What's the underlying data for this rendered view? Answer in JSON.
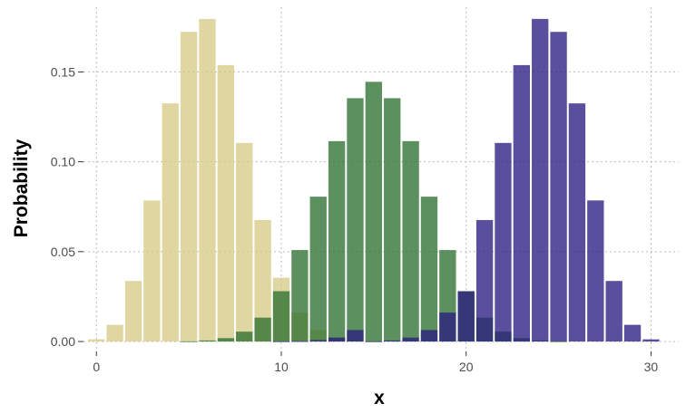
{
  "chart_data": {
    "type": "bar",
    "title": "",
    "xlabel": "x",
    "ylabel": "Probability",
    "xlim": [
      -0.7,
      31.5
    ],
    "ylim": [
      -0.0055,
      0.186
    ],
    "xticks": [
      0,
      10,
      20,
      30
    ],
    "xtick_labels": [
      "0",
      "10",
      "20",
      "30"
    ],
    "yticks": [
      0.0,
      0.05,
      0.1,
      0.15
    ],
    "ytick_labels": [
      "0.00",
      "0.05",
      "0.10",
      "0.15"
    ],
    "grid": true,
    "legend": false,
    "x": [
      0,
      1,
      2,
      3,
      4,
      5,
      6,
      7,
      8,
      9,
      10,
      11,
      12,
      13,
      14,
      15,
      16,
      17,
      18,
      19,
      20,
      21,
      22,
      23,
      24,
      25,
      26,
      27,
      28,
      29,
      30
    ],
    "series": [
      {
        "color": "#d4c882",
        "opacity": 0.75,
        "values": [
          0.0012,
          0.0093,
          0.0337,
          0.0785,
          0.1325,
          0.1723,
          0.1795,
          0.1538,
          0.1105,
          0.0676,
          0.0355,
          0.0161,
          0.0064,
          0.0022,
          0.0006,
          0.0001,
          0,
          0,
          0,
          0,
          0,
          0,
          0,
          0,
          0,
          0,
          0,
          0,
          0,
          0,
          0
        ]
      },
      {
        "color": "#2e7131",
        "opacity": 0.78,
        "values": [
          0,
          0,
          0,
          0,
          0,
          0.0001,
          0.0006,
          0.0019,
          0.0055,
          0.0133,
          0.028,
          0.0509,
          0.0806,
          0.1115,
          0.1354,
          0.1445,
          0.1354,
          0.1115,
          0.0806,
          0.0509,
          0.028,
          0.0133,
          0.0055,
          0.0019,
          0.0006,
          0.0001,
          0,
          0,
          0,
          0,
          0
        ]
      },
      {
        "color": "#2b1d80",
        "opacity": 0.78,
        "values": [
          0,
          0,
          0,
          0,
          0,
          0,
          0,
          0,
          0,
          0,
          0.0001,
          0.0002,
          0.0008,
          0.0022,
          0.0064,
          0.0001,
          0.0006,
          0.0022,
          0.0064,
          0.0161,
          0.028,
          0.0676,
          0.1105,
          0.1538,
          0.1795,
          0.1723,
          0.1325,
          0.0785,
          0.0337,
          0.0093,
          0.0012
        ]
      }
    ]
  }
}
